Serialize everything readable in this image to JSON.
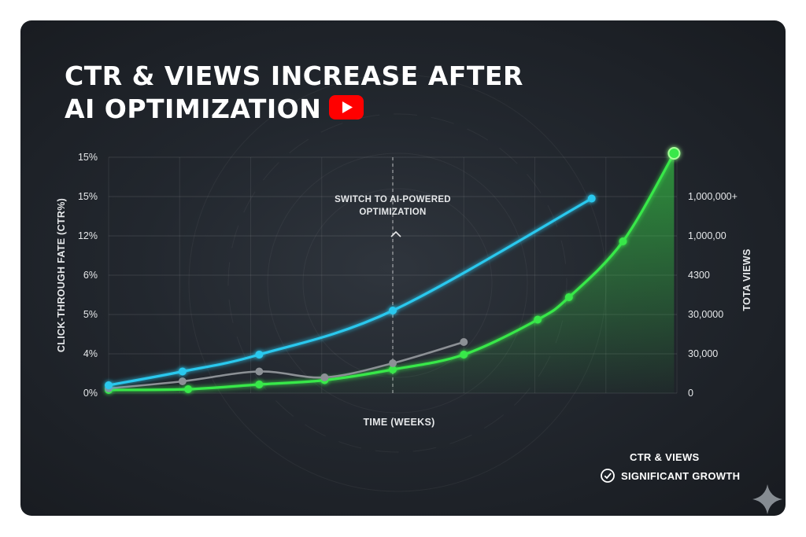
{
  "chart_data": {
    "type": "line",
    "title_lines": [
      "CTR & VIEWS INCREASE AFTER",
      "AI OPTIMIZATION"
    ],
    "xlabel": "TIME (WEEKS)",
    "ylabel_left": "CLICK-THROUGH FATE (CTR%)",
    "ylabel_right": "TOTA VIEWS",
    "left_ticks": [
      "0%",
      "4%",
      "5%",
      "6%",
      "12%",
      "15%",
      "15%"
    ],
    "right_ticks": [
      "0",
      "30,000",
      "30,0000",
      "4300",
      "1,000,00",
      "1,000,000+"
    ],
    "x_range": [
      0,
      10
    ],
    "y_range": [
      0,
      6
    ],
    "annotation": {
      "lines": [
        "SWITCH TO AI-POWERED",
        "OPTIMIZATION"
      ],
      "x": 5.0
    },
    "series": [
      {
        "color": "#29c8ee",
        "points": [
          [
            0.0,
            0.2
          ],
          [
            1.3,
            0.55
          ],
          [
            2.65,
            0.98
          ],
          [
            5.0,
            2.1
          ],
          [
            8.5,
            4.95
          ]
        ],
        "marked": [
          0,
          1,
          2,
          3,
          4
        ]
      },
      {
        "color": "#8c9095",
        "points": [
          [
            0.0,
            0.12
          ],
          [
            1.3,
            0.3
          ],
          [
            2.65,
            0.55
          ],
          [
            3.8,
            0.4
          ],
          [
            5.0,
            0.76
          ],
          [
            6.25,
            1.3
          ]
        ],
        "marked": [
          0,
          1,
          2,
          3,
          4,
          5
        ]
      },
      {
        "name": "CTR & VIEWS",
        "color": "#39e84a",
        "area": true,
        "points": [
          [
            0.0,
            0.08
          ],
          [
            1.4,
            0.1
          ],
          [
            2.65,
            0.22
          ],
          [
            3.8,
            0.33
          ],
          [
            5.0,
            0.6
          ],
          [
            6.25,
            0.98
          ],
          [
            7.55,
            1.87
          ],
          [
            8.1,
            2.44
          ],
          [
            9.05,
            3.86
          ],
          [
            9.95,
            6.1
          ]
        ],
        "marked": [
          0,
          1,
          2,
          3,
          4,
          5,
          6,
          7,
          8,
          9
        ]
      }
    ],
    "legend": [
      {
        "label": "CTR & VIEWS",
        "type": "line",
        "color": "#39e84a"
      },
      {
        "label": "SIGNIFICANT GROWTH",
        "type": "check-icon",
        "color": "#ffffff"
      }
    ]
  }
}
